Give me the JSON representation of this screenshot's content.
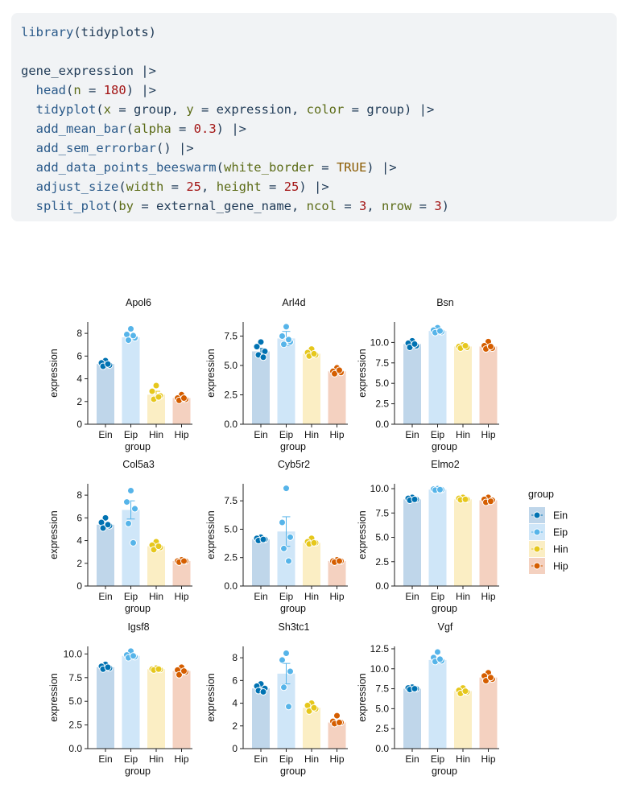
{
  "code": {
    "lines": [
      [
        {
          "t": "fn",
          "s": "library"
        },
        {
          "t": "plain",
          "s": "(tidyplots)"
        }
      ],
      [],
      [
        {
          "t": "plain",
          "s": "gene_expression |>"
        }
      ],
      [
        {
          "t": "plain",
          "s": "  "
        },
        {
          "t": "fn",
          "s": "head"
        },
        {
          "t": "plain",
          "s": "("
        },
        {
          "t": "arg",
          "s": "n"
        },
        {
          "t": "plain",
          "s": " = "
        },
        {
          "t": "num",
          "s": "180"
        },
        {
          "t": "plain",
          "s": ") |>"
        }
      ],
      [
        {
          "t": "plain",
          "s": "  "
        },
        {
          "t": "fn",
          "s": "tidyplot"
        },
        {
          "t": "plain",
          "s": "("
        },
        {
          "t": "arg",
          "s": "x"
        },
        {
          "t": "plain",
          "s": " = group, "
        },
        {
          "t": "arg",
          "s": "y"
        },
        {
          "t": "plain",
          "s": " = expression, "
        },
        {
          "t": "arg",
          "s": "color"
        },
        {
          "t": "plain",
          "s": " = group) |>"
        }
      ],
      [
        {
          "t": "plain",
          "s": "  "
        },
        {
          "t": "fn",
          "s": "add_mean_bar"
        },
        {
          "t": "plain",
          "s": "("
        },
        {
          "t": "arg",
          "s": "alpha"
        },
        {
          "t": "plain",
          "s": " = "
        },
        {
          "t": "num",
          "s": "0.3"
        },
        {
          "t": "plain",
          "s": ") |>"
        }
      ],
      [
        {
          "t": "plain",
          "s": "  "
        },
        {
          "t": "fn",
          "s": "add_sem_errorbar"
        },
        {
          "t": "plain",
          "s": "() |>"
        }
      ],
      [
        {
          "t": "plain",
          "s": "  "
        },
        {
          "t": "fn",
          "s": "add_data_points_beeswarm"
        },
        {
          "t": "plain",
          "s": "("
        },
        {
          "t": "arg",
          "s": "white_border"
        },
        {
          "t": "plain",
          "s": " = "
        },
        {
          "t": "const",
          "s": "TRUE"
        },
        {
          "t": "plain",
          "s": ") |>"
        }
      ],
      [
        {
          "t": "plain",
          "s": "  "
        },
        {
          "t": "fn",
          "s": "adjust_size"
        },
        {
          "t": "plain",
          "s": "("
        },
        {
          "t": "arg",
          "s": "width"
        },
        {
          "t": "plain",
          "s": " = "
        },
        {
          "t": "num",
          "s": "25"
        },
        {
          "t": "plain",
          "s": ", "
        },
        {
          "t": "arg",
          "s": "height"
        },
        {
          "t": "plain",
          "s": " = "
        },
        {
          "t": "num",
          "s": "25"
        },
        {
          "t": "plain",
          "s": ") |>"
        }
      ],
      [
        {
          "t": "plain",
          "s": "  "
        },
        {
          "t": "fn",
          "s": "split_plot"
        },
        {
          "t": "plain",
          "s": "("
        },
        {
          "t": "arg",
          "s": "by"
        },
        {
          "t": "plain",
          "s": " = external_gene_name, "
        },
        {
          "t": "arg",
          "s": "ncol"
        },
        {
          "t": "plain",
          "s": " = "
        },
        {
          "t": "num",
          "s": "3"
        },
        {
          "t": "plain",
          "s": ", "
        },
        {
          "t": "arg",
          "s": "nrow"
        },
        {
          "t": "plain",
          "s": " = "
        },
        {
          "t": "num",
          "s": "3"
        },
        {
          "t": "plain",
          "s": ")"
        }
      ]
    ]
  },
  "colors": {
    "Ein": "#0072B2",
    "Eip": "#56B4E9",
    "Hin": "#E6C71C",
    "Hip": "#D55E00",
    "Ein_bar": "#BFD6EA",
    "Eip_bar": "#CFE6F8",
    "Hin_bar": "#FBEEC4",
    "Hip_bar": "#F4D1C0"
  },
  "legend": {
    "title": "group",
    "items": [
      "Ein",
      "Eip",
      "Hin",
      "Hip"
    ]
  },
  "chart_data": [
    {
      "type": "bar",
      "title": "Apol6",
      "xlabel": "group",
      "ylabel": "expression",
      "categories": [
        "Ein",
        "Eip",
        "Hin",
        "Hip"
      ],
      "ylim": [
        0,
        9
      ],
      "yticks": [
        0,
        2,
        4,
        6,
        8
      ],
      "yticklabels": [
        "0",
        "2",
        "4",
        "6",
        "8"
      ],
      "means": [
        5.3,
        7.65,
        2.6,
        2.3
      ],
      "sem": [
        0.15,
        0.25,
        0.3,
        0.1
      ],
      "points": [
        [
          5.6,
          5.4,
          5.2,
          5.1,
          5.3
        ],
        [
          8.4,
          7.9,
          7.6,
          7.4,
          7.8
        ],
        [
          3.4,
          2.9,
          2.5,
          2.2,
          2.4
        ],
        [
          2.6,
          2.3,
          2.2,
          2.1,
          2.3
        ]
      ]
    },
    {
      "type": "bar",
      "title": "Arl4d",
      "xlabel": "group",
      "ylabel": "expression",
      "categories": [
        "Ein",
        "Eip",
        "Hin",
        "Hip"
      ],
      "ylim": [
        0,
        8.7
      ],
      "yticks": [
        0,
        2.5,
        5,
        7.5
      ],
      "yticklabels": [
        "0.0",
        "2.5",
        "5.0",
        "7.5"
      ],
      "means": [
        6.2,
        7.3,
        6.0,
        4.5
      ],
      "sem": [
        0.25,
        0.6,
        0.2,
        0.15
      ],
      "points": [
        [
          7.0,
          6.6,
          6.2,
          5.9,
          5.7
        ],
        [
          8.3,
          7.5,
          7.0,
          6.8,
          7.2
        ],
        [
          6.4,
          6.1,
          5.9,
          5.8,
          6.0
        ],
        [
          4.8,
          4.5,
          4.4,
          4.3,
          4.6
        ]
      ]
    },
    {
      "type": "bar",
      "title": "Bsn",
      "xlabel": "group",
      "ylabel": "expression",
      "categories": [
        "Ein",
        "Eip",
        "Hin",
        "Hip"
      ],
      "ylim": [
        0,
        12.5
      ],
      "yticks": [
        0,
        2.5,
        5,
        7.5,
        10
      ],
      "yticklabels": [
        "0.0",
        "2.5",
        "5.0",
        "7.5",
        "10.0"
      ],
      "means": [
        9.8,
        11.4,
        9.5,
        9.5
      ],
      "sem": [
        0.2,
        0.15,
        0.1,
        0.2
      ],
      "points": [
        [
          10.2,
          9.9,
          9.6,
          9.4,
          9.8
        ],
        [
          11.8,
          11.5,
          11.3,
          11.2,
          11.4
        ],
        [
          9.7,
          9.5,
          9.4,
          9.3,
          9.6
        ],
        [
          10.1,
          9.6,
          9.3,
          9.2,
          9.5
        ]
      ]
    },
    {
      "type": "bar",
      "title": "Col5a3",
      "xlabel": "group",
      "ylabel": "expression",
      "categories": [
        "Ein",
        "Eip",
        "Hin",
        "Hip"
      ],
      "ylim": [
        0,
        9
      ],
      "yticks": [
        0,
        2,
        4,
        6,
        8
      ],
      "yticklabels": [
        "0",
        "2",
        "4",
        "6",
        "8"
      ],
      "means": [
        5.4,
        6.7,
        3.5,
        2.2
      ],
      "sem": [
        0.2,
        0.8,
        0.15,
        0.05
      ],
      "points": [
        [
          6.0,
          5.6,
          5.3,
          5.1,
          5.4
        ],
        [
          8.4,
          7.4,
          6.8,
          5.5,
          3.8
        ],
        [
          3.9,
          3.6,
          3.4,
          3.2,
          3.5
        ],
        [
          2.3,
          2.2,
          2.2,
          2.1,
          2.2
        ]
      ]
    },
    {
      "type": "bar",
      "title": "Cyb5r2",
      "xlabel": "group",
      "ylabel": "expression",
      "categories": [
        "Ein",
        "Eip",
        "Hin",
        "Hip"
      ],
      "ylim": [
        0,
        9
      ],
      "yticks": [
        0,
        2.5,
        5,
        7.5
      ],
      "yticklabels": [
        "0.0",
        "2.5",
        "5.0",
        "7.5"
      ],
      "means": [
        4.1,
        4.8,
        3.8,
        2.2
      ],
      "sem": [
        0.1,
        1.3,
        0.15,
        0.05
      ],
      "points": [
        [
          4.3,
          4.2,
          4.1,
          4.0,
          4.1
        ],
        [
          8.6,
          5.6,
          4.3,
          3.3,
          2.2
        ],
        [
          4.2,
          3.9,
          3.8,
          3.7,
          3.8
        ],
        [
          2.3,
          2.2,
          2.2,
          2.1,
          2.2
        ]
      ]
    },
    {
      "type": "bar",
      "title": "Elmo2",
      "xlabel": "group",
      "ylabel": "expression",
      "categories": [
        "Ein",
        "Eip",
        "Hin",
        "Hip"
      ],
      "ylim": [
        0,
        10.5
      ],
      "yticks": [
        0,
        2.5,
        5,
        7.5,
        10
      ],
      "yticklabels": [
        "0.0",
        "2.5",
        "5.0",
        "7.5",
        "10.0"
      ],
      "means": [
        8.9,
        9.9,
        8.9,
        8.8
      ],
      "sem": [
        0.1,
        0.05,
        0.1,
        0.15
      ],
      "points": [
        [
          9.1,
          9.0,
          8.9,
          8.8,
          8.9
        ],
        [
          10.0,
          9.95,
          9.9,
          9.85,
          9.9
        ],
        [
          9.1,
          9.0,
          8.9,
          8.85,
          8.9
        ],
        [
          9.1,
          8.9,
          8.8,
          8.6,
          8.7
        ]
      ]
    },
    {
      "type": "bar",
      "title": "Igsf8",
      "xlabel": "group",
      "ylabel": "expression",
      "categories": [
        "Ein",
        "Eip",
        "Hin",
        "Hip"
      ],
      "ylim": [
        0,
        10.8
      ],
      "yticks": [
        0,
        2.5,
        5,
        7.5,
        10
      ],
      "yticklabels": [
        "0.0",
        "2.5",
        "5.0",
        "7.5",
        "10.0"
      ],
      "means": [
        8.6,
        9.8,
        8.4,
        8.2
      ],
      "sem": [
        0.1,
        0.15,
        0.05,
        0.15
      ],
      "points": [
        [
          8.9,
          8.7,
          8.5,
          8.4,
          8.6
        ],
        [
          10.3,
          9.9,
          9.7,
          9.6,
          9.8
        ],
        [
          8.5,
          8.4,
          8.35,
          8.3,
          8.4
        ],
        [
          8.6,
          8.3,
          8.1,
          7.8,
          8.2
        ]
      ]
    },
    {
      "type": "bar",
      "title": "Sh3tc1",
      "xlabel": "group",
      "ylabel": "expression",
      "categories": [
        "Ein",
        "Eip",
        "Hin",
        "Hip"
      ],
      "ylim": [
        0,
        9
      ],
      "yticks": [
        0,
        2,
        4,
        6,
        8
      ],
      "yticklabels": [
        "0",
        "2",
        "4",
        "6",
        "8"
      ],
      "means": [
        5.3,
        6.6,
        3.6,
        2.3
      ],
      "sem": [
        0.2,
        0.9,
        0.2,
        0.15
      ],
      "points": [
        [
          5.7,
          5.5,
          5.3,
          5.1,
          5.0
        ],
        [
          8.4,
          7.8,
          6.8,
          5.4,
          3.7
        ],
        [
          4.0,
          3.8,
          3.5,
          3.3,
          3.6
        ],
        [
          2.9,
          2.4,
          2.3,
          2.2,
          2.3
        ]
      ]
    },
    {
      "type": "bar",
      "title": "Vgf",
      "xlabel": "group",
      "ylabel": "expression",
      "categories": [
        "Ein",
        "Eip",
        "Hin",
        "Hip"
      ],
      "ylim": [
        0,
        12.8
      ],
      "yticks": [
        0,
        2.5,
        5,
        7.5,
        10,
        12.5
      ],
      "yticklabels": [
        "0.0",
        "2.5",
        "5.0",
        "7.5",
        "10.0",
        "12.5"
      ],
      "means": [
        7.5,
        11.1,
        7.2,
        8.9
      ],
      "sem": [
        0.1,
        0.2,
        0.2,
        0.2
      ],
      "points": [
        [
          7.7,
          7.6,
          7.5,
          7.4,
          7.5
        ],
        [
          12.1,
          11.4,
          11.0,
          10.9,
          11.2
        ],
        [
          7.6,
          7.3,
          7.1,
          6.9,
          7.2
        ],
        [
          9.5,
          9.1,
          8.7,
          8.5,
          8.9
        ]
      ]
    }
  ]
}
